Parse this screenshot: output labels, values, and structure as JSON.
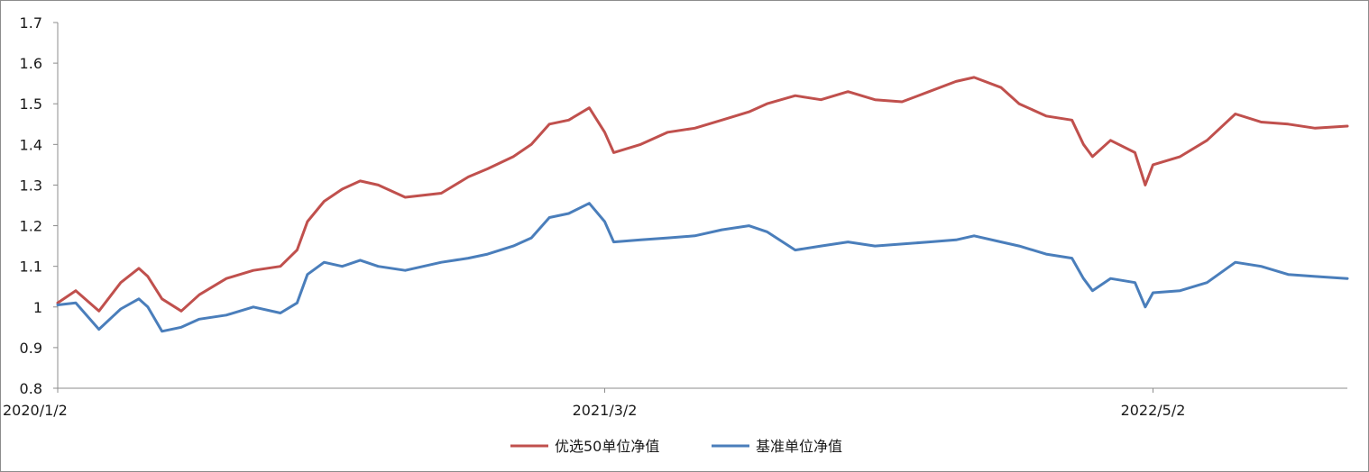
{
  "chart_data": {
    "type": "line",
    "title": "",
    "xlabel": "",
    "ylabel": "",
    "ylim": [
      0.8,
      1.7
    ],
    "yticks": [
      "0.8",
      "0.9",
      "1",
      "1.1",
      "1.2",
      "1.3",
      "1.4",
      "1.5",
      "1.6",
      "1.7"
    ],
    "xticks": [
      "2020/1/2",
      "2021/3/2",
      "2022/5/2"
    ],
    "grid": false,
    "legend_position": "bottom-center",
    "x_start": "2020/1/2",
    "x_end": "2022/9/30",
    "series": [
      {
        "name": "优选50单位净值",
        "color": "#c0504d",
        "points": [
          [
            "2020/1/2",
            1.01
          ],
          [
            "2020/1/16",
            1.04
          ],
          [
            "2020/2/3",
            0.99
          ],
          [
            "2020/2/20",
            1.06
          ],
          [
            "2020/3/5",
            1.095
          ],
          [
            "2020/3/12",
            1.075
          ],
          [
            "2020/3/23",
            1.02
          ],
          [
            "2020/4/7",
            0.99
          ],
          [
            "2020/4/21",
            1.03
          ],
          [
            "2020/5/12",
            1.07
          ],
          [
            "2020/6/2",
            1.09
          ],
          [
            "2020/6/23",
            1.1
          ],
          [
            "2020/7/6",
            1.14
          ],
          [
            "2020/7/14",
            1.21
          ],
          [
            "2020/7/27",
            1.26
          ],
          [
            "2020/8/10",
            1.29
          ],
          [
            "2020/8/24",
            1.31
          ],
          [
            "2020/9/7",
            1.3
          ],
          [
            "2020/9/28",
            1.27
          ],
          [
            "2020/10/26",
            1.28
          ],
          [
            "2020/11/16",
            1.32
          ],
          [
            "2020/12/1",
            1.34
          ],
          [
            "2020/12/21",
            1.37
          ],
          [
            "2021/1/4",
            1.4
          ],
          [
            "2021/1/18",
            1.45
          ],
          [
            "2021/2/2",
            1.46
          ],
          [
            "2021/2/18",
            1.49
          ],
          [
            "2021/3/2",
            1.43
          ],
          [
            "2021/3/9",
            1.38
          ],
          [
            "2021/3/30",
            1.4
          ],
          [
            "2021/4/20",
            1.43
          ],
          [
            "2021/5/11",
            1.44
          ],
          [
            "2021/6/1",
            1.46
          ],
          [
            "2021/6/22",
            1.48
          ],
          [
            "2021/7/6",
            1.5
          ],
          [
            "2021/7/28",
            1.52
          ],
          [
            "2021/8/17",
            1.51
          ],
          [
            "2021/9/7",
            1.53
          ],
          [
            "2021/9/28",
            1.51
          ],
          [
            "2021/10/19",
            1.505
          ],
          [
            "2021/11/9",
            1.53
          ],
          [
            "2021/11/30",
            1.555
          ],
          [
            "2021/12/14",
            1.565
          ],
          [
            "2022/1/4",
            1.54
          ],
          [
            "2022/1/18",
            1.5
          ],
          [
            "2022/2/8",
            1.47
          ],
          [
            "2022/2/28",
            1.46
          ],
          [
            "2022/3/9",
            1.4
          ],
          [
            "2022/3/16",
            1.37
          ],
          [
            "2022/3/30",
            1.41
          ],
          [
            "2022/4/18",
            1.38
          ],
          [
            "2022/4/26",
            1.3
          ],
          [
            "2022/5/2",
            1.35
          ],
          [
            "2022/5/23",
            1.37
          ],
          [
            "2022/6/13",
            1.41
          ],
          [
            "2022/7/5",
            1.475
          ],
          [
            "2022/7/25",
            1.455
          ],
          [
            "2022/8/15",
            1.45
          ],
          [
            "2022/9/5",
            1.44
          ],
          [
            "2022/9/30",
            1.445
          ]
        ]
      },
      {
        "name": "基准单位净值",
        "color": "#4a7ebb",
        "points": [
          [
            "2020/1/2",
            1.005
          ],
          [
            "2020/1/16",
            1.01
          ],
          [
            "2020/2/3",
            0.945
          ],
          [
            "2020/2/20",
            0.995
          ],
          [
            "2020/3/5",
            1.02
          ],
          [
            "2020/3/12",
            1.0
          ],
          [
            "2020/3/23",
            0.94
          ],
          [
            "2020/4/7",
            0.95
          ],
          [
            "2020/4/21",
            0.97
          ],
          [
            "2020/5/12",
            0.98
          ],
          [
            "2020/6/2",
            1.0
          ],
          [
            "2020/6/23",
            0.985
          ],
          [
            "2020/7/6",
            1.01
          ],
          [
            "2020/7/14",
            1.08
          ],
          [
            "2020/7/27",
            1.11
          ],
          [
            "2020/8/10",
            1.1
          ],
          [
            "2020/8/24",
            1.115
          ],
          [
            "2020/9/7",
            1.1
          ],
          [
            "2020/9/28",
            1.09
          ],
          [
            "2020/10/26",
            1.11
          ],
          [
            "2020/11/16",
            1.12
          ],
          [
            "2020/12/1",
            1.13
          ],
          [
            "2020/12/21",
            1.15
          ],
          [
            "2021/1/4",
            1.17
          ],
          [
            "2021/1/18",
            1.22
          ],
          [
            "2021/2/2",
            1.23
          ],
          [
            "2021/2/18",
            1.255
          ],
          [
            "2021/3/2",
            1.21
          ],
          [
            "2021/3/9",
            1.16
          ],
          [
            "2021/3/30",
            1.165
          ],
          [
            "2021/4/20",
            1.17
          ],
          [
            "2021/5/11",
            1.175
          ],
          [
            "2021/6/1",
            1.19
          ],
          [
            "2021/6/22",
            1.2
          ],
          [
            "2021/7/6",
            1.185
          ],
          [
            "2021/7/28",
            1.14
          ],
          [
            "2021/8/17",
            1.15
          ],
          [
            "2021/9/7",
            1.16
          ],
          [
            "2021/9/28",
            1.15
          ],
          [
            "2021/10/19",
            1.155
          ],
          [
            "2021/11/9",
            1.16
          ],
          [
            "2021/11/30",
            1.165
          ],
          [
            "2021/12/14",
            1.175
          ],
          [
            "2022/1/4",
            1.16
          ],
          [
            "2022/1/18",
            1.15
          ],
          [
            "2022/2/8",
            1.13
          ],
          [
            "2022/2/28",
            1.12
          ],
          [
            "2022/3/9",
            1.07
          ],
          [
            "2022/3/16",
            1.04
          ],
          [
            "2022/3/30",
            1.07
          ],
          [
            "2022/4/18",
            1.06
          ],
          [
            "2022/4/26",
            1.0
          ],
          [
            "2022/5/2",
            1.035
          ],
          [
            "2022/5/23",
            1.04
          ],
          [
            "2022/6/13",
            1.06
          ],
          [
            "2022/7/5",
            1.11
          ],
          [
            "2022/7/25",
            1.1
          ],
          [
            "2022/8/15",
            1.08
          ],
          [
            "2022/9/5",
            1.075
          ],
          [
            "2022/9/30",
            1.07
          ]
        ]
      }
    ]
  }
}
